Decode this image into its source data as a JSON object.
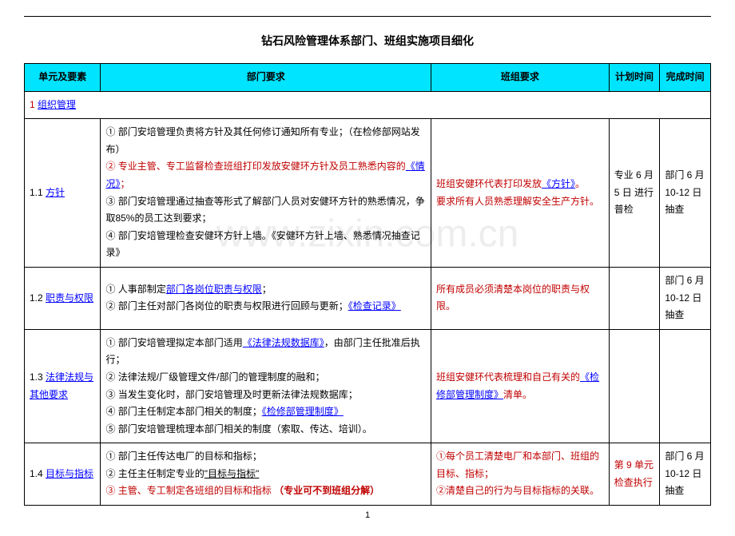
{
  "watermark": "www.zixin.com.cn",
  "title": "钻石风险管理体系部门、班组实施项目细化",
  "page_number": "1",
  "headers": {
    "c1": "单元及要素",
    "c2": "部门要求",
    "c3": "班组要求",
    "c4": "计划时间",
    "c5": "完成时间"
  },
  "section1": {
    "num": "1",
    "link": "组织管理"
  },
  "r11": {
    "key": "1.1 ",
    "key_link": "方针",
    "dept_l1": "① 部门安培管理负责将方针及其任何修订通知所有专业；（在检修部网站发布）",
    "dept_l2_a": "② 专业主管、专工监督检查班组打印发放安健环方针及员工熟悉内容的",
    "dept_l2_link": "《情况》",
    "dept_l2_b": "；",
    "dept_l3": "③ 部门安培管理通过抽查等形式了解部门人员对安健环方针的熟悉情况，争取85%的员工达到要求；",
    "dept_l4_a": "④ 部门安培管理检查安健环方针上墙。",
    "dept_l4_link": "《安健环方针上墙、熟悉情况抽查记录》",
    "team_l1_a": "班组安健环代表打印发放",
    "team_l1_link": "《方针》",
    "team_l1_b": "。",
    "team_l2": "要求所有人员熟悉理解安全生产方针。",
    "plan": "专业 6 月5 日 进行普检",
    "done": "部门 6 月10-12 日抽查"
  },
  "r12": {
    "key": "1.2 ",
    "key_link": "职责与权限",
    "dept_l1_a": "① 人事部制定",
    "dept_l1_link": "部门各岗位职责与权限",
    "dept_l1_b": "；",
    "dept_l2_a": "② 部门主任对部门各岗位的职责与权限进行回顾与更新；",
    "dept_l2_link": "《检查记录》",
    "team": "所有成员必须清楚本岗位的职责与权限。",
    "plan": "",
    "done": "部门 6 月10-12 日抽查"
  },
  "r13": {
    "key": "1.3 ",
    "key_link": "法律法规与其他要求",
    "dept_l1_a": "① 部门安培管理拟定本部门适用",
    "dept_l1_link": "《法律法规数据库》",
    "dept_l1_b": "，由部门主任批准后执行；",
    "dept_l2": "② 法律法规/厂级管理文件/部门的管理制度的融和；",
    "dept_l3": "③ 当发生变化时，部门安培管理及时更新法律法规数据库；",
    "dept_l4_a": "④ 部门主任制定本部门相关的制度；",
    "dept_l4_link": "《检修部管理制度》",
    "dept_l5": "⑤ 部门安培管理梳理本部门相关的制度（索取、传达、培训）。",
    "team_a": "班组安健环代表梳理和自己有关的",
    "team_link": "《检修部管理制度》",
    "team_b": "清单。",
    "plan": "",
    "done": ""
  },
  "r14": {
    "key": "1.4 ",
    "key_link": "目标与指标",
    "dept_l1": "① 部门主任传达电厂的目标和指标；",
    "dept_l2_a": "② 主任主任制定专业的",
    "dept_l2_link": "\"目标与指标\"",
    "dept_l3_a": "③ 主管、专工制定各班组的目标和指标",
    "dept_l3_b": "（专业可不到班组分解）",
    "team_l1": "①每个员工清楚电厂和本部门、班组的目标、指标；",
    "team_l2": "②清楚自己的行为与目标指标的关联。",
    "plan": "第 9 单元检查执行",
    "done": "部门 6 月10-12 日抽查"
  }
}
